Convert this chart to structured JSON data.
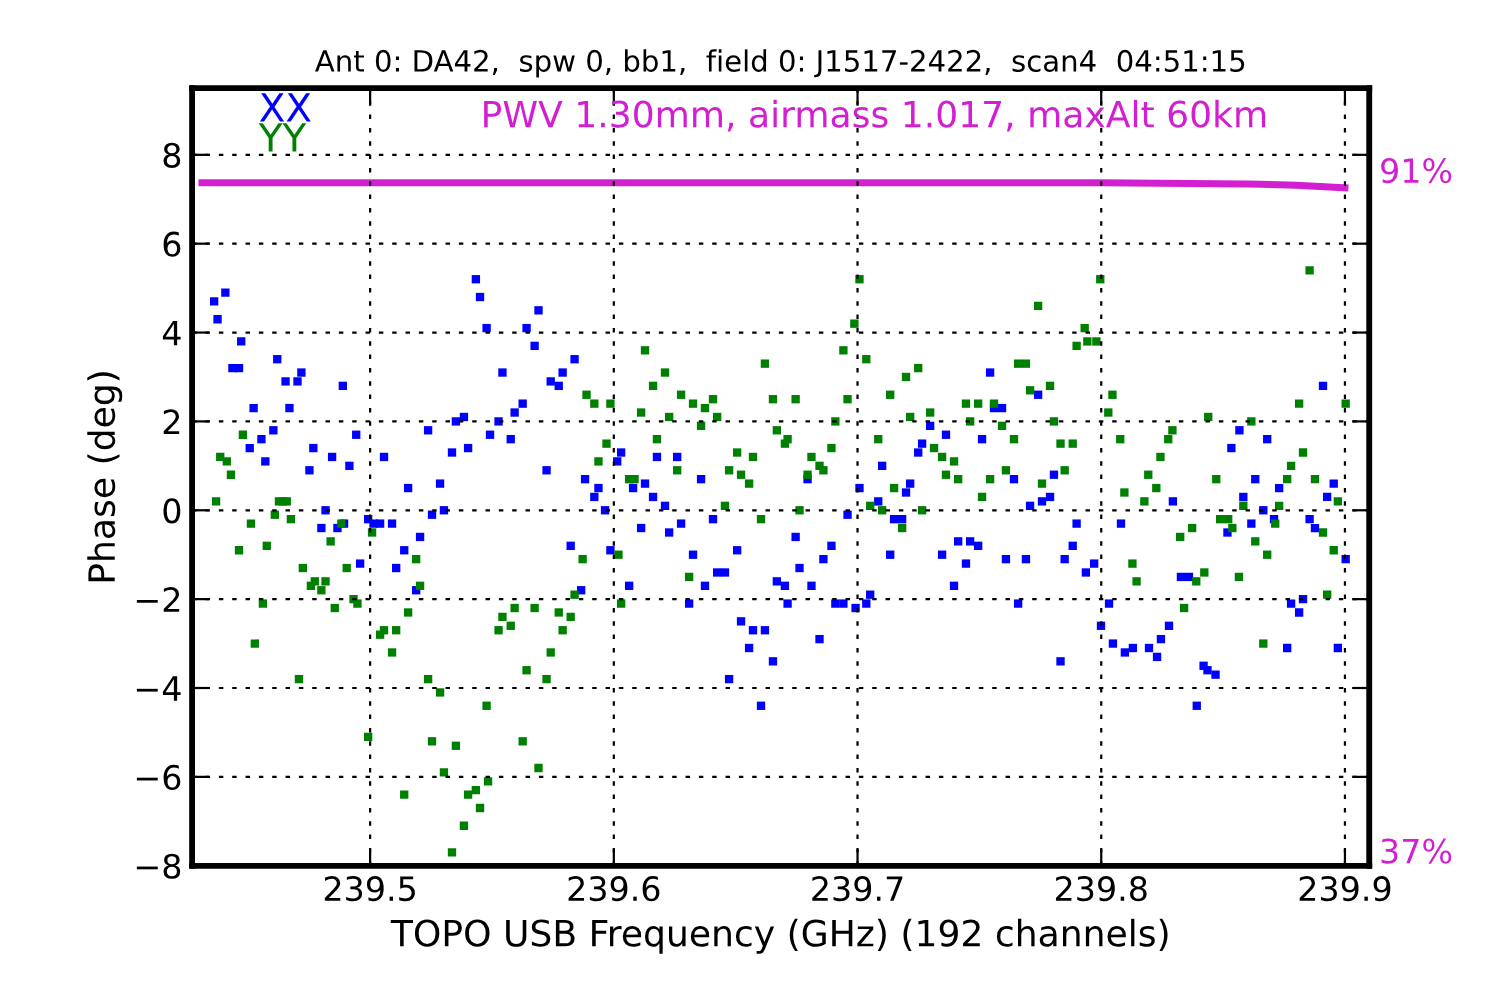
{
  "chart_data": {
    "type": "scatter",
    "title": "Ant 0: DA42,  spw 0, bb1,  field 0: J1517-2422,  scan4  04:51:15",
    "xlabel": "TOPO USB Frequency (GHz) (192 channels)",
    "ylabel": "Phase (deg)",
    "annotations": [
      "PWV 1.30mm, airmass 1.017, maxAlt 60km"
    ],
    "xlim": [
      239.427,
      239.91
    ],
    "xticks": [
      239.5,
      239.6,
      239.7,
      239.8,
      239.9
    ],
    "ylim": [
      -8,
      9.5
    ],
    "yticks": [
      {
        "value": -8,
        "label": "−8"
      },
      {
        "value": -6,
        "label": "−6"
      },
      {
        "value": -4,
        "label": "−4"
      },
      {
        "value": -2,
        "label": "−2"
      },
      0,
      2,
      4,
      6,
      8
    ],
    "y2lim": [
      35.8,
      97.5
    ],
    "y2ticks": [
      {
        "value": 37,
        "label": "37%"
      },
      {
        "value": 91,
        "label": "91%"
      }
    ],
    "grid": true,
    "legend": "top left",
    "marker": "square",
    "series": [
      {
        "name": "XX",
        "color": "#0000ff",
        "x": [
          239.436,
          239.4374,
          239.4406,
          239.4435,
          239.4462,
          239.4471,
          239.4506,
          239.4522,
          239.4554,
          239.457,
          239.4603,
          239.4619,
          239.4653,
          239.4669,
          239.4702,
          239.4718,
          239.4751,
          239.4767,
          239.48,
          239.4817,
          239.4844,
          239.4866,
          239.4888,
          239.4893,
          239.4915,
          239.4943,
          239.4959,
          239.4992,
          239.5014,
          239.5041,
          239.5057,
          239.509,
          239.5107,
          239.514,
          239.5156,
          239.5189,
          239.5205,
          239.5238,
          239.5254,
          239.5287,
          239.5303,
          239.5336,
          239.5352,
          239.5385,
          239.5402,
          239.5434,
          239.5451,
          239.5478,
          239.5492,
          239.5527,
          239.5543,
          239.5577,
          239.5593,
          239.5626,
          239.5642,
          239.5675,
          239.5691,
          239.5724,
          239.5741,
          239.5774,
          239.579,
          239.5823,
          239.5839,
          239.5866,
          239.5882,
          239.592,
          239.5937,
          239.5964,
          239.5986,
          239.6014,
          239.603,
          239.6063,
          239.6079,
          239.6112,
          239.6128,
          239.6161,
          239.6177,
          239.621,
          239.6227,
          239.626,
          239.6276,
          239.6309,
          239.6325,
          239.6358,
          239.6374,
          239.6407,
          239.6424,
          239.6456,
          239.6473,
          239.6506,
          239.6522,
          239.6555,
          239.6571,
          239.6604,
          239.662,
          239.6653,
          239.6669,
          239.6702,
          239.6713,
          239.6746,
          239.6762,
          239.6795,
          239.6811,
          239.6844,
          239.686,
          239.6893,
          239.6909,
          239.6942,
          239.6959,
          239.6992,
          239.7008,
          239.7036,
          239.7052,
          239.7085,
          239.7101,
          239.7134,
          239.715,
          239.7183,
          239.7199,
          239.7216,
          239.7249,
          239.7265,
          239.7298,
          239.7347,
          239.7363,
          239.7396,
          239.7413,
          239.7445,
          239.7462,
          239.7495,
          239.7511,
          239.7544,
          239.756,
          239.7593,
          239.7609,
          239.7642,
          239.7659,
          239.7691,
          239.7708,
          239.7741,
          239.7757,
          239.779,
          239.7806,
          239.7833,
          239.785,
          239.7883,
          239.7899,
          239.7937,
          239.7971,
          239.7999,
          239.8032,
          239.8048,
          239.8081,
          239.8097,
          239.813,
          239.8196,
          239.8229,
          239.8245,
          239.8278,
          239.8294,
          239.8327,
          239.836,
          239.8392,
          239.842,
          239.8436,
          239.8469,
          239.8518,
          239.8534,
          239.8567,
          239.8583,
          239.8616,
          239.8632,
          239.8665,
          239.8681,
          239.8709,
          239.873,
          239.8763,
          239.8779,
          239.8812,
          239.8828,
          239.8855,
          239.8877,
          239.891,
          239.8927,
          239.8954,
          239.8971,
          239.9003
        ],
        "values": [
          4.7,
          4.3,
          4.9,
          3.2,
          3.2,
          3.8,
          1.4,
          2.3,
          1.6,
          1.1,
          1.8,
          3.4,
          2.9,
          2.3,
          2.9,
          3.1,
          0.9,
          1.4,
          -0.4,
          0.0,
          1.2,
          -0.4,
          2.8,
          -0.3,
          1.0,
          1.7,
          -1.2,
          -0.2,
          -0.3,
          -0.3,
          1.2,
          -0.3,
          -1.3,
          -0.9,
          0.5,
          -1.8,
          -0.6,
          1.8,
          -0.1,
          0.6,
          0.0,
          1.3,
          2.0,
          2.1,
          1.4,
          5.2,
          4.8,
          4.1,
          1.7,
          2.0,
          3.1,
          1.6,
          2.2,
          2.4,
          4.1,
          3.7,
          4.5,
          0.9,
          2.9,
          2.8,
          3.1,
          -0.8,
          3.4,
          -1.8,
          0.7,
          0.3,
          0.5,
          0.0,
          -0.9,
          1.1,
          1.3,
          -1.7,
          0.5,
          -0.4,
          0.6,
          0.3,
          1.2,
          0.1,
          -0.5,
          1.2,
          -0.3,
          -2.1,
          -1.0,
          0.7,
          -1.7,
          -0.2,
          -1.4,
          -1.4,
          -3.8,
          -0.9,
          -2.5,
          -3.1,
          -2.7,
          -4.4,
          -2.7,
          -3.4,
          -1.6,
          -1.7,
          -2.1,
          -0.6,
          -1.3,
          0.7,
          -1.7,
          -2.9,
          -1.1,
          -0.8,
          -2.1,
          -2.1,
          -0.1,
          -2.2,
          0.5,
          -2.1,
          -1.9,
          0.2,
          1.0,
          -1.0,
          -0.2,
          -0.2,
          0.4,
          0.6,
          1.3,
          1.5,
          1.9,
          -1.0,
          1.7,
          -1.7,
          -0.7,
          -1.2,
          -0.7,
          -0.8,
          1.6,
          3.1,
          2.3,
          2.3,
          -1.1,
          0.7,
          -2.1,
          -1.1,
          0.1,
          2.6,
          0.2,
          0.3,
          0.8,
          -3.4,
          -1.1,
          -0.8,
          -0.3,
          -1.4,
          -1.2,
          -2.6,
          -2.1,
          -3.0,
          -0.3,
          -3.2,
          -3.1,
          -3.1,
          -3.3,
          -2.9,
          -2.6,
          0.2,
          -1.5,
          -1.5,
          -4.4,
          -3.5,
          -3.6,
          -3.7,
          -0.5,
          1.4,
          1.8,
          0.3,
          -0.3,
          0.7,
          0.0,
          1.6,
          -0.2,
          0.5,
          -3.1,
          -2.1,
          -2.3,
          -2.0,
          -0.2,
          -0.4,
          2.8,
          0.3,
          0.6,
          -3.1,
          -1.1
        ]
      },
      {
        "name": "YY",
        "color": "#008000",
        "x": [
          239.4368,
          239.4385,
          239.4412,
          239.4429,
          239.4462,
          239.4478,
          239.4511,
          239.4527,
          239.456,
          239.4576,
          239.4609,
          239.4626,
          239.4642,
          239.4658,
          239.4675,
          239.4708,
          239.4724,
          239.4757,
          239.4773,
          239.48,
          239.4817,
          239.4838,
          239.4855,
          239.4882,
          239.4904,
          239.4932,
          239.4948,
          239.4992,
          239.5008,
          239.5041,
          239.5057,
          239.509,
          239.5107,
          239.514,
          239.5156,
          239.5189,
          239.5205,
          239.5238,
          239.5254,
          239.5287,
          239.5303,
          239.5336,
          239.5352,
          239.5385,
          239.5402,
          239.5434,
          239.5451,
          239.5478,
          239.5484,
          239.5527,
          239.5543,
          239.5577,
          239.5593,
          239.5626,
          239.5642,
          239.5675,
          239.5691,
          239.5724,
          239.5741,
          239.5774,
          239.579,
          239.5823,
          239.5839,
          239.5872,
          239.5888,
          239.592,
          239.5937,
          239.597,
          239.5986,
          239.6019,
          239.603,
          239.6063,
          239.6085,
          239.6112,
          239.6128,
          239.6161,
          239.6177,
          239.621,
          239.6227,
          239.626,
          239.6276,
          239.6309,
          239.6325,
          239.6358,
          239.6374,
          239.6407,
          239.6424,
          239.6456,
          239.6473,
          239.6506,
          239.6522,
          239.6555,
          239.6571,
          239.6604,
          239.662,
          239.6653,
          239.6669,
          239.6702,
          239.6713,
          239.6746,
          239.6762,
          239.6795,
          239.6811,
          239.6844,
          239.686,
          239.6893,
          239.6909,
          239.6942,
          239.6959,
          239.6987,
          239.7008,
          239.7036,
          239.7052,
          239.7085,
          239.7101,
          239.7134,
          239.715,
          239.7183,
          239.7199,
          239.7216,
          239.7249,
          239.7265,
          239.7298,
          239.7314,
          239.7347,
          239.7363,
          239.7396,
          239.7413,
          239.7445,
          239.7462,
          239.7495,
          239.7511,
          239.7544,
          239.756,
          239.7593,
          239.7609,
          239.7642,
          239.7659,
          239.7691,
          239.7708,
          239.7741,
          239.7757,
          239.779,
          239.7806,
          239.7833,
          239.785,
          239.7883,
          239.7899,
          239.7932,
          239.7943,
          239.798,
          239.7996,
          239.8029,
          239.8046,
          239.8078,
          239.8095,
          239.8128,
          239.8145,
          239.8177,
          239.8193,
          239.8226,
          239.8243,
          239.8275,
          239.8292,
          239.8324,
          239.834,
          239.8373,
          239.839,
          239.8423,
          239.8439,
          239.8472,
          239.8488,
          239.8521,
          239.8538,
          239.8565,
          239.8583,
          239.8616,
          239.8632,
          239.8665,
          239.8681,
          239.8714,
          239.873,
          239.8763,
          239.8779,
          239.8812,
          239.8828,
          239.8855,
          239.8877,
          239.891,
          239.8927,
          239.8954,
          239.8971,
          239.9003
        ],
        "values": [
          0.2,
          1.2,
          1.1,
          0.8,
          -0.9,
          1.7,
          -0.3,
          -3.0,
          -2.1,
          -0.8,
          -0.1,
          0.2,
          0.2,
          0.2,
          -0.2,
          -3.8,
          -1.3,
          -1.7,
          -1.6,
          -1.8,
          -1.6,
          -0.7,
          -2.2,
          -0.3,
          -1.3,
          -2.0,
          -2.1,
          -5.1,
          -0.5,
          -2.8,
          -2.7,
          -3.2,
          -2.7,
          -6.4,
          -2.3,
          -1.1,
          -1.7,
          -3.8,
          -5.2,
          -4.1,
          -5.9,
          -7.7,
          -5.3,
          -7.1,
          -6.4,
          -6.3,
          -6.7,
          -4.4,
          -6.1,
          -2.7,
          -2.4,
          -2.6,
          -2.2,
          -5.2,
          -3.6,
          -2.2,
          -5.8,
          -3.8,
          -3.2,
          -2.3,
          -2.7,
          -2.4,
          -1.9,
          -1.1,
          2.6,
          2.4,
          1.1,
          1.5,
          2.4,
          -1.0,
          -2.1,
          0.7,
          0.7,
          2.2,
          3.6,
          2.8,
          1.6,
          3.1,
          2.1,
          0.9,
          2.6,
          -1.5,
          2.4,
          1.9,
          2.3,
          2.5,
          2.1,
          0.1,
          0.9,
          1.3,
          0.8,
          0.6,
          1.2,
          -0.2,
          3.3,
          2.5,
          1.8,
          1.5,
          1.6,
          2.5,
          0.0,
          0.8,
          1.2,
          1.0,
          0.9,
          1.4,
          2.0,
          3.6,
          2.5,
          4.2,
          5.2,
          3.4,
          0.1,
          1.6,
          0.0,
          2.6,
          0.5,
          -0.4,
          3.0,
          2.1,
          3.2,
          0.0,
          2.2,
          1.4,
          1.2,
          0.8,
          1.1,
          0.7,
          2.4,
          2.0,
          2.4,
          0.3,
          0.7,
          2.4,
          1.9,
          0.9,
          1.6,
          3.3,
          3.3,
          2.7,
          4.6,
          0.6,
          2.8,
          2.0,
          1.5,
          0.9,
          1.5,
          3.7,
          4.1,
          3.8,
          3.8,
          5.2,
          2.2,
          2.6,
          1.6,
          0.4,
          -1.2,
          -1.6,
          0.2,
          0.8,
          0.5,
          1.2,
          1.6,
          1.8,
          -0.6,
          -2.2,
          -0.4,
          -1.6,
          -1.4,
          2.1,
          0.7,
          -0.2,
          -0.2,
          -0.4,
          -1.5,
          0.1,
          2.0,
          -0.7,
          -3.0,
          -1.0,
          -0.3,
          0.1,
          0.7,
          1.0,
          2.4,
          1.3,
          5.4,
          0.7,
          -0.5,
          -1.9,
          -0.9,
          0.2,
          2.4
        ]
      },
      {
        "type": "line",
        "marker": "none",
        "axis": "y2",
        "color": "#d21fd2",
        "x": [
          239.431,
          239.8,
          239.86,
          239.88,
          239.9
        ],
        "values": [
          90.0,
          90.0,
          89.9,
          89.8,
          89.6
        ]
      }
    ]
  }
}
